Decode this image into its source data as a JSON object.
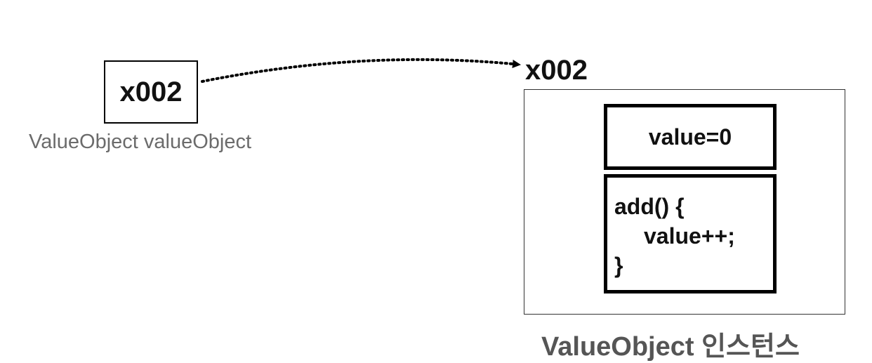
{
  "reference": {
    "address": "x002",
    "variable_label": "ValueObject valueObject"
  },
  "instance": {
    "address": "x002",
    "field": "value=0",
    "method_lines": [
      "add() {",
      "value++;",
      "}"
    ],
    "caption": "ValueObject 인스턴스"
  }
}
